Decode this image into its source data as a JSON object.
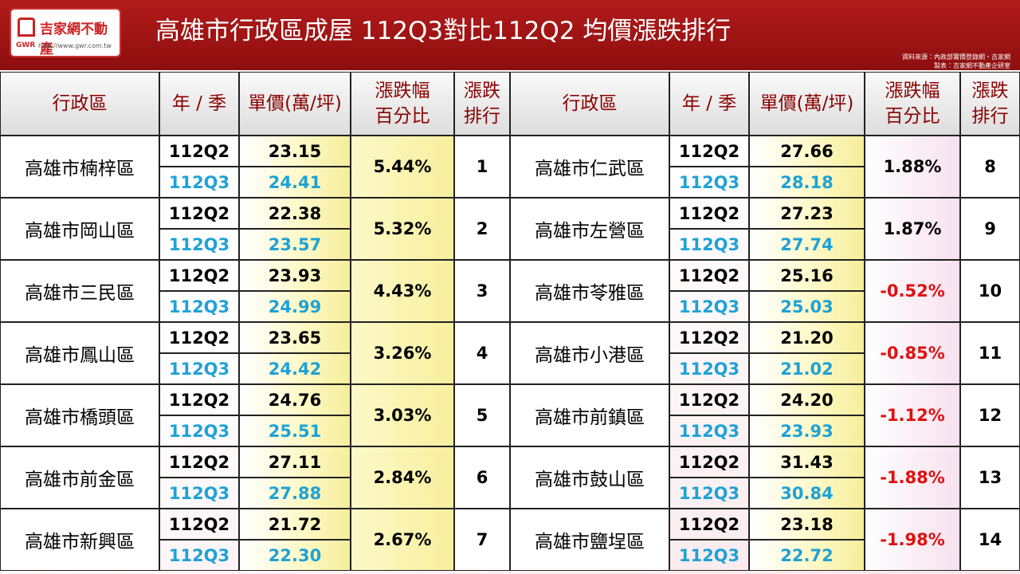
{
  "header": {
    "logo": {
      "brand": "吉家網不動產",
      "short": "GWR",
      "url": "http://www.gwr.com.tw"
    },
    "title": "高雄市行政區成屋 112Q3對比112Q2 均價漲跌排行",
    "source": "資料來源：內政部實價登錄網、吉家網",
    "maker": "製表：吉家網不動產企研室"
  },
  "table": {
    "columns": [
      "行政區",
      "年 / 季",
      "單價(萬/坪)",
      [
        "漲跌幅",
        "百分比"
      ],
      [
        "漲跌",
        "排行"
      ]
    ],
    "halves": [
      [
        {
          "district": "高雄市楠梓區",
          "periods": [
            "112Q2",
            "112Q3"
          ],
          "prices": [
            "23.15",
            "24.41"
          ],
          "change": "5.44%",
          "rank": "1"
        },
        {
          "district": "高雄市岡山區",
          "periods": [
            "112Q2",
            "112Q3"
          ],
          "prices": [
            "22.38",
            "23.57"
          ],
          "change": "5.32%",
          "rank": "2"
        },
        {
          "district": "高雄市三民區",
          "periods": [
            "112Q2",
            "112Q3"
          ],
          "prices": [
            "23.93",
            "24.99"
          ],
          "change": "4.43%",
          "rank": "3"
        },
        {
          "district": "高雄市鳳山區",
          "periods": [
            "112Q2",
            "112Q3"
          ],
          "prices": [
            "23.65",
            "24.42"
          ],
          "change": "3.26%",
          "rank": "4"
        },
        {
          "district": "高雄市橋頭區",
          "periods": [
            "112Q2",
            "112Q3"
          ],
          "prices": [
            "24.76",
            "25.51"
          ],
          "change": "3.03%",
          "rank": "5"
        },
        {
          "district": "高雄市前金區",
          "periods": [
            "112Q2",
            "112Q3"
          ],
          "prices": [
            "27.11",
            "27.88"
          ],
          "change": "2.84%",
          "rank": "6"
        },
        {
          "district": "高雄市新興區",
          "periods": [
            "112Q2",
            "112Q3"
          ],
          "prices": [
            "21.72",
            "22.30"
          ],
          "change": "2.67%",
          "rank": "7"
        }
      ],
      [
        {
          "district": "高雄市仁武區",
          "periods": [
            "112Q2",
            "112Q3"
          ],
          "prices": [
            "27.66",
            "28.18"
          ],
          "change": "1.88%",
          "rank": "8"
        },
        {
          "district": "高雄市左營區",
          "periods": [
            "112Q2",
            "112Q3"
          ],
          "prices": [
            "27.23",
            "27.74"
          ],
          "change": "1.87%",
          "rank": "9"
        },
        {
          "district": "高雄市苓雅區",
          "periods": [
            "112Q2",
            "112Q3"
          ],
          "prices": [
            "25.16",
            "25.03"
          ],
          "change": "-0.52%",
          "rank": "10"
        },
        {
          "district": "高雄市小港區",
          "periods": [
            "112Q2",
            "112Q3"
          ],
          "prices": [
            "21.20",
            "21.02"
          ],
          "change": "-0.85%",
          "rank": "11"
        },
        {
          "district": "高雄市前鎮區",
          "periods": [
            "112Q2",
            "112Q3"
          ],
          "prices": [
            "24.20",
            "23.93"
          ],
          "change": "-1.12%",
          "rank": "12"
        },
        {
          "district": "高雄市鼓山區",
          "periods": [
            "112Q2",
            "112Q3"
          ],
          "prices": [
            "31.43",
            "30.84"
          ],
          "change": "-1.88%",
          "rank": "13"
        },
        {
          "district": "高雄市鹽埕區",
          "periods": [
            "112Q2",
            "112Q3"
          ],
          "prices": [
            "23.18",
            "22.72"
          ],
          "change": "-1.98%",
          "rank": "14"
        }
      ]
    ]
  }
}
